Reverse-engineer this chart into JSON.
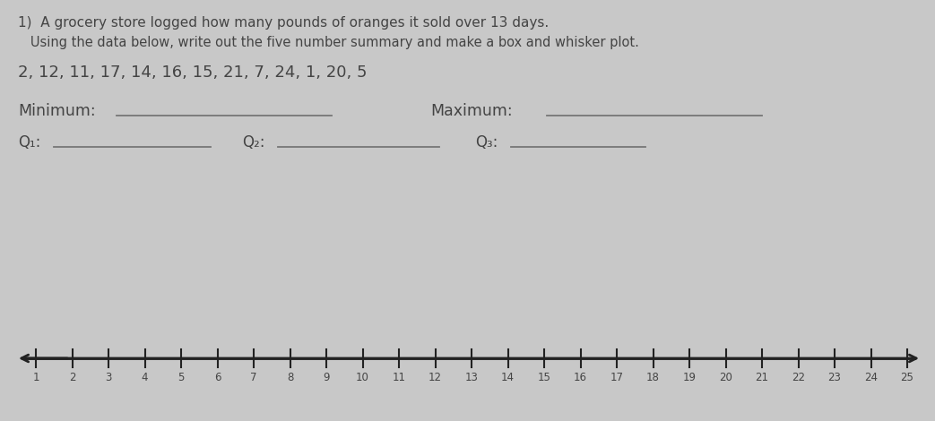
{
  "background_color": "#c8c8c8",
  "title_line1": "1)  A grocery store logged how many pounds of oranges it sold over 13 days.",
  "title_line2": "   Using the data below, write out the five number summary and make a box and whisker plot.",
  "data_line": "2, 12, 11, 17, 14, 16, 15, 21, 7, 24, 1, 20, 5",
  "minimum_label": "Minimum:",
  "maximum_label": "Maximum:",
  "q1_label": "Q₁:",
  "q2_label": "Q₂:",
  "q3_label": "Q₃:",
  "tick_labels": [
    1,
    2,
    3,
    4,
    5,
    6,
    7,
    8,
    9,
    10,
    11,
    12,
    13,
    14,
    15,
    16,
    17,
    18,
    19,
    20,
    21,
    22,
    23,
    24,
    25
  ],
  "text_color": "#444444",
  "line_color": "#777777",
  "nl_color": "#222222"
}
